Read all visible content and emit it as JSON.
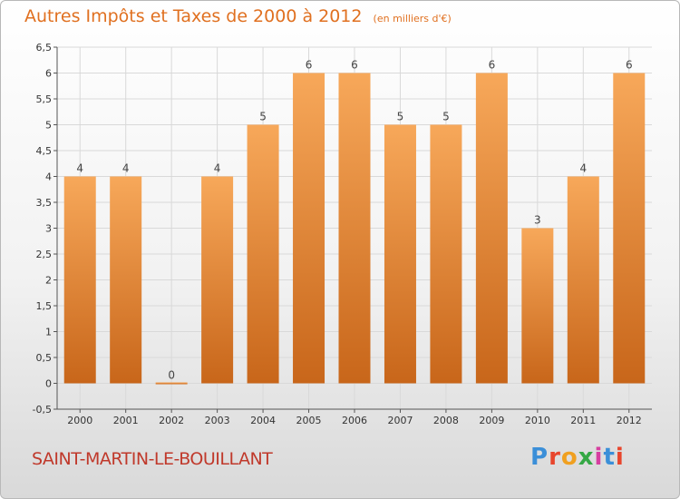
{
  "header": {
    "title": "Autres Impôts et Taxes de 2000 à 2012",
    "unit": "(en milliers d'€)"
  },
  "footer": {
    "place": "SAINT-MARTIN-LE-BOUILLANT",
    "logo_letters": [
      "P",
      "r",
      "o",
      "x",
      "i",
      "t",
      "i"
    ]
  },
  "colors": {
    "bar_light": "#f7a85a",
    "bar_dark": "#c8661a",
    "grid": "#d9d9d9",
    "title": "#e07020",
    "place": "#c0392b"
  },
  "chart_data": {
    "type": "bar",
    "categories": [
      "2000",
      "2001",
      "2002",
      "2003",
      "2004",
      "2005",
      "2006",
      "2007",
      "2008",
      "2009",
      "2010",
      "2011",
      "2012"
    ],
    "values": [
      4,
      4,
      0,
      4,
      5,
      6,
      6,
      5,
      5,
      6,
      3,
      4,
      6
    ],
    "ylim": [
      -0.5,
      6.5
    ],
    "yticks": [
      "-0,5",
      "0",
      "0,5",
      "1",
      "1,5",
      "2",
      "2,5",
      "3",
      "3,5",
      "4",
      "4,5",
      "5",
      "5,5",
      "6",
      "6,5"
    ],
    "grid": true
  }
}
